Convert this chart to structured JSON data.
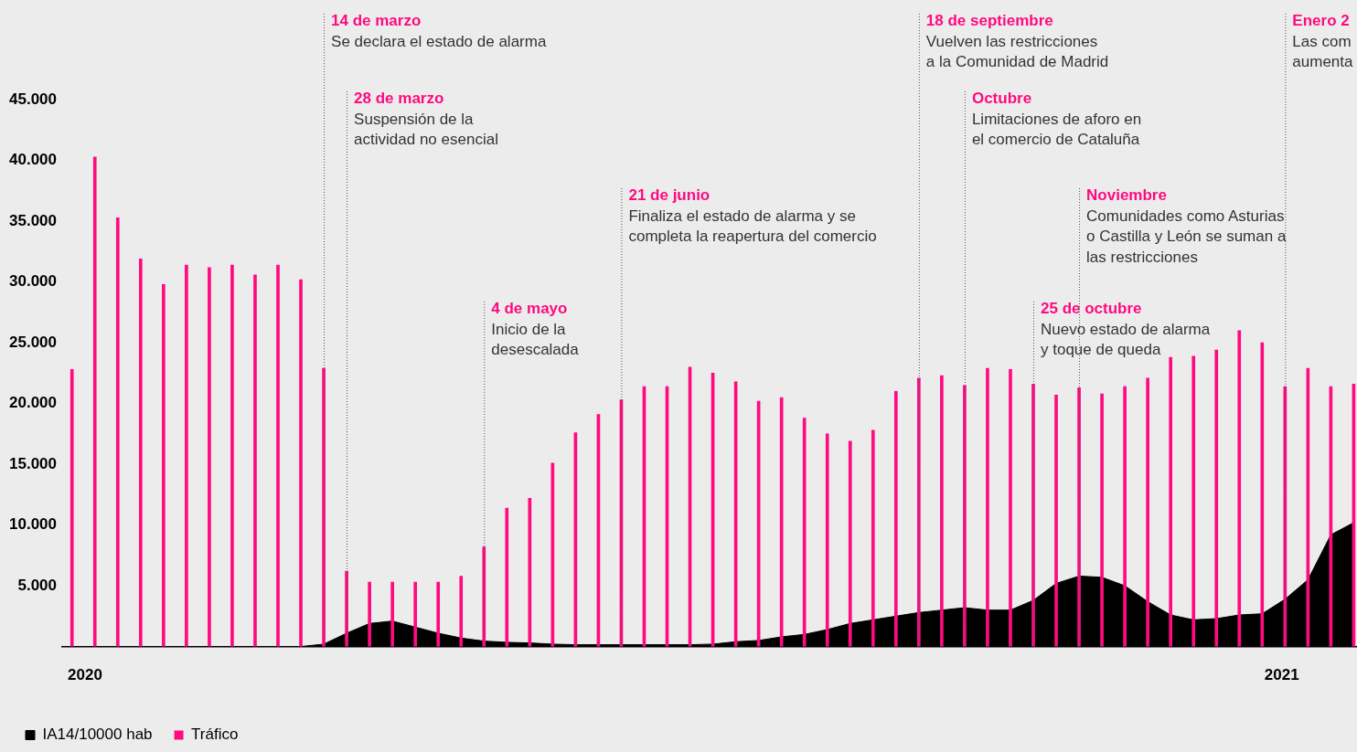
{
  "chart_data": {
    "type": "bar",
    "x": [
      "2019-12-28",
      "2020-01-04",
      "2020-01-11",
      "2020-01-18",
      "2020-01-25",
      "2020-02-01",
      "2020-02-08",
      "2020-02-15",
      "2020-02-22",
      "2020-02-29",
      "2020-03-07",
      "2020-03-14",
      "2020-03-21",
      "2020-03-28",
      "2020-04-04",
      "2020-04-11",
      "2020-04-18",
      "2020-04-25",
      "2020-05-02",
      "2020-05-09",
      "2020-05-16",
      "2020-05-23",
      "2020-05-30",
      "2020-06-06",
      "2020-06-13",
      "2020-06-20",
      "2020-06-27",
      "2020-07-04",
      "2020-07-11",
      "2020-07-18",
      "2020-07-25",
      "2020-08-01",
      "2020-08-08",
      "2020-08-15",
      "2020-08-22",
      "2020-08-29",
      "2020-09-05",
      "2020-09-12",
      "2020-09-19",
      "2020-09-26",
      "2020-10-03",
      "2020-10-10",
      "2020-10-17",
      "2020-10-24",
      "2020-10-31",
      "2020-11-07",
      "2020-11-14",
      "2020-11-21",
      "2020-11-28",
      "2020-12-05",
      "2020-12-12",
      "2020-12-19",
      "2020-12-26",
      "2021-01-02",
      "2021-01-09",
      "2021-01-16",
      "2021-01-23"
    ],
    "series": [
      {
        "name": "IA14/10000 hab",
        "type": "area",
        "color": "#000000",
        "values": [
          0,
          0,
          0,
          0,
          0,
          0,
          0,
          0,
          0,
          0,
          0,
          200,
          1100,
          1900,
          2100,
          1600,
          1100,
          700,
          450,
          350,
          300,
          200,
          150,
          150,
          150,
          150,
          150,
          150,
          200,
          400,
          500,
          800,
          1000,
          1400,
          1900,
          2200,
          2500,
          2800,
          3000,
          3200,
          3000,
          3000,
          3800,
          5200,
          5800,
          5700,
          5000,
          3700,
          2600,
          2200,
          2300,
          2600,
          2700,
          3900,
          5500,
          9200,
          10200
        ]
      },
      {
        "name": "Tráfico",
        "color": "#ff0a7f",
        "values": [
          22800,
          40300,
          35300,
          31900,
          29800,
          31400,
          31200,
          31400,
          30600,
          31400,
          30200,
          22900,
          6200,
          5300,
          5300,
          5300,
          5300,
          5800,
          8200,
          11400,
          12200,
          15100,
          17600,
          19100,
          20300,
          21400,
          21400,
          23000,
          22500,
          21800,
          20200,
          20500,
          18800,
          17500,
          16900,
          17800,
          21000,
          22100,
          22300,
          21500,
          22900,
          22800,
          21600,
          20700,
          21300,
          20800,
          21400,
          22100,
          23800,
          23900,
          24400,
          26000,
          25000,
          21400,
          22900,
          21400,
          21600
        ]
      }
    ],
    "xlim": [
      "2019-12-25",
      "2021-01-24"
    ],
    "xticks": [
      {
        "value": "2020-01-01",
        "label": "2020"
      },
      {
        "value": "2021-01-01",
        "label": "2021"
      }
    ],
    "ylim": [
      0,
      52000
    ],
    "yticks": [
      {
        "value": 5000,
        "label": "5.000"
      },
      {
        "value": 10000,
        "label": "10.000"
      },
      {
        "value": 15000,
        "label": "15.000"
      },
      {
        "value": 20000,
        "label": "20.000"
      },
      {
        "value": 25000,
        "label": "25.000"
      },
      {
        "value": 30000,
        "label": "30.000"
      },
      {
        "value": 35000,
        "label": "35.000"
      },
      {
        "value": 40000,
        "label": "40.000"
      },
      {
        "value": 45000,
        "label": "45.000"
      }
    ],
    "grid": false,
    "legend": "bottom left",
    "ref_lines": [
      {
        "axis": "x",
        "value": "2020-03-14",
        "label": "14 de marzo\nSe declara el estado de alarma"
      },
      {
        "axis": "x",
        "value": "2020-03-21",
        "label": "28 de marzo\nSuspensión de la\nactividad no esencial"
      },
      {
        "axis": "x",
        "value": "2020-05-02",
        "label": "4 de mayo\nInicio de la\ndesescalada"
      },
      {
        "axis": "x",
        "value": "2020-06-13",
        "label": "21 de junio\nFinaliza el estado de alarma y se\ncompleta la reapertura del comercio"
      },
      {
        "axis": "x",
        "value": "2020-09-12",
        "label": "18 de septiembre\nVuelven las restricciones\na la Comunidad de Madrid"
      },
      {
        "axis": "x",
        "value": "2020-09-26",
        "label": "Octubre\nLimitaciones de aforo en\nel comercio de Cataluña"
      },
      {
        "axis": "x",
        "value": "2020-10-17",
        "label": "25 de octubre\nNuevo estado de alarma\ny toque de queda"
      },
      {
        "axis": "x",
        "value": "2020-10-31",
        "label": "Noviembre\nComunidades como Asturias\no Castilla y León se suman a\nlas restricciones"
      },
      {
        "axis": "x",
        "value": "2021-01-02",
        "label": "Enero 2\nLas com\naumenta"
      }
    ]
  }
}
